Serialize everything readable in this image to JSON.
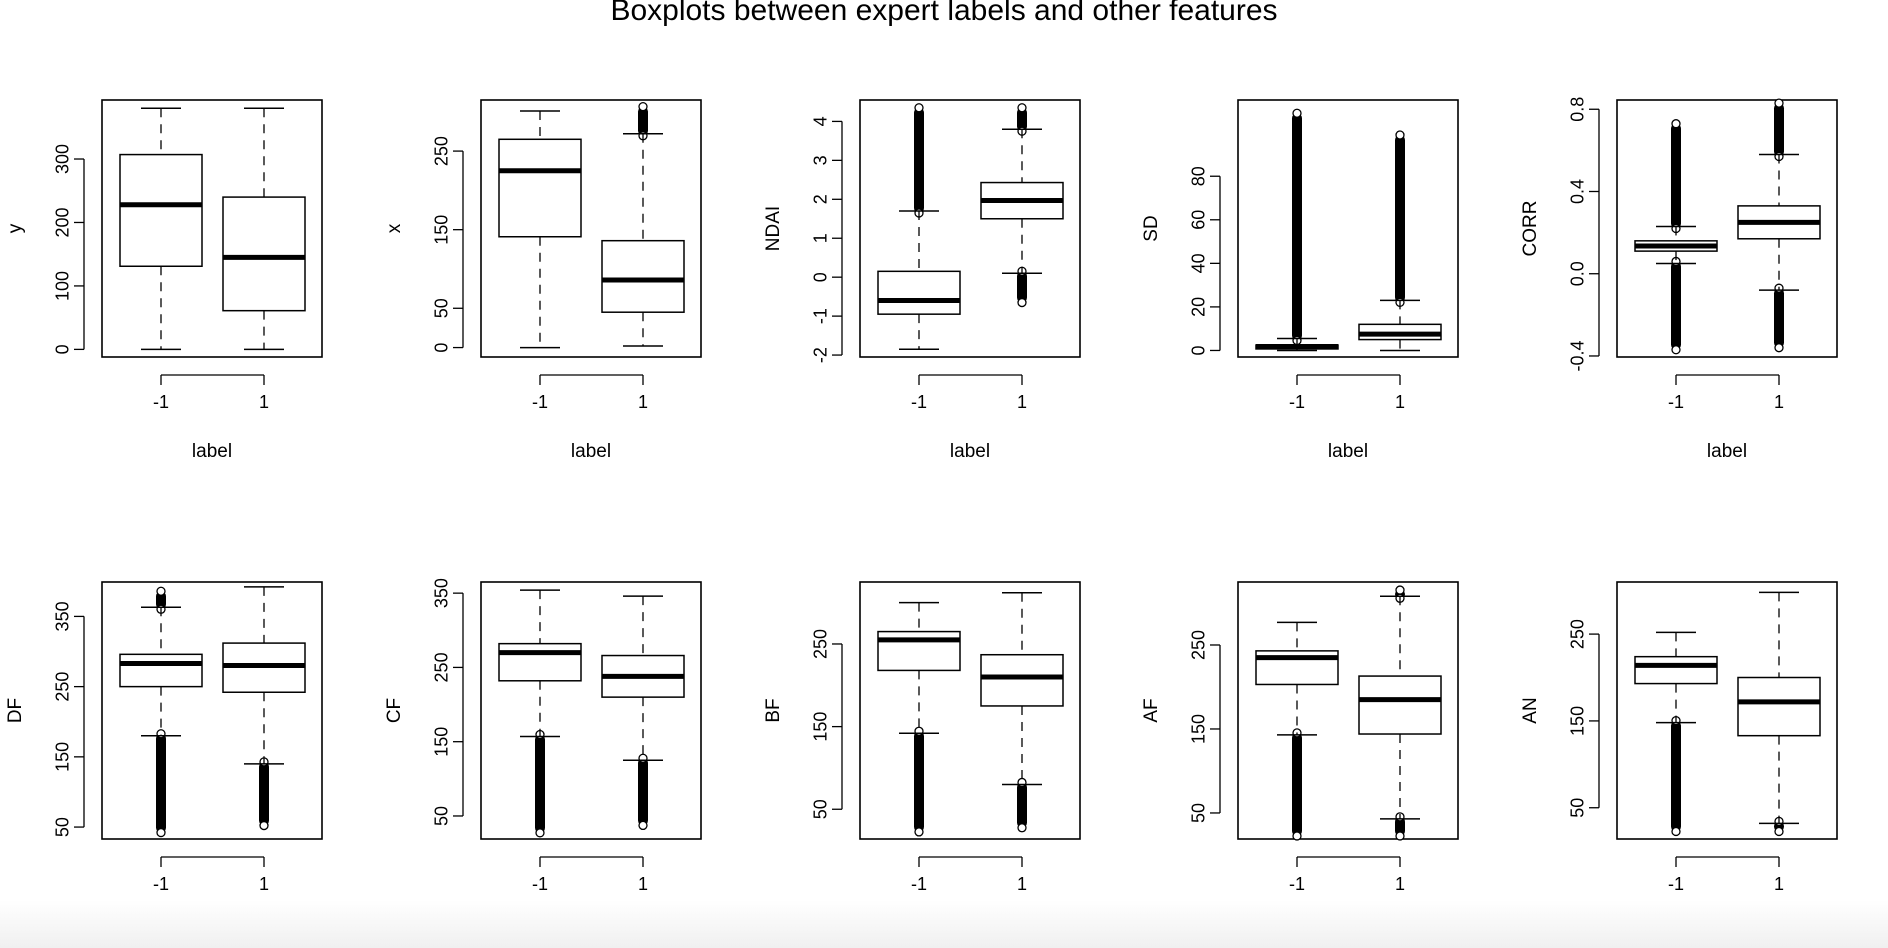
{
  "chart_data": {
    "type": "boxplot",
    "title": "Boxplots between expert labels and other features",
    "categories": [
      "-1",
      "1"
    ],
    "xlabel": "label",
    "panels": [
      {
        "ylabel": "y",
        "yticks": [
          0,
          100,
          200,
          300
        ],
        "tick_labels": [
          "0",
          "100",
          "200",
          "300"
        ],
        "ylim": [
          -12,
          393
        ],
        "boxes": [
          {
            "lo": 0,
            "q1": 131,
            "med": 228,
            "q3": 307,
            "hi": 380,
            "outliers": []
          },
          {
            "lo": 0,
            "q1": 61,
            "med": 145,
            "q3": 240,
            "hi": 380,
            "outliers": []
          }
        ]
      },
      {
        "ylabel": "x",
        "yticks": [
          0,
          50,
          150,
          250
        ],
        "tick_labels": [
          "0",
          "50",
          "150",
          "250"
        ],
        "ylim": [
          -12,
          315
        ],
        "boxes": [
          {
            "lo": 0,
            "q1": 141,
            "med": 225,
            "q3": 265,
            "hi": 301,
            "outliers": []
          },
          {
            "lo": 2,
            "q1": 45,
            "med": 86,
            "q3": 136,
            "hi": 272,
            "outliers": [
              [
                272,
                304
              ]
            ]
          }
        ]
      },
      {
        "ylabel": "NDAI",
        "yticks": [
          -2,
          -1,
          0,
          1,
          2,
          3,
          4
        ],
        "tick_labels": [
          "-2",
          "-1",
          "0",
          "1",
          "2",
          "3",
          "4"
        ],
        "ylim": [
          -2.05,
          4.55
        ],
        "boxes": [
          {
            "lo": -1.85,
            "q1": -0.95,
            "med": -0.6,
            "q3": 0.15,
            "hi": 1.7,
            "outliers": [
              [
                1.7,
                4.3
              ]
            ]
          },
          {
            "lo": 0.1,
            "q1": 1.5,
            "med": 1.97,
            "q3": 2.43,
            "hi": 3.8,
            "outliers": [
              [
                3.8,
                4.3
              ],
              [
                -0.6,
                0.1
              ]
            ]
          }
        ]
      },
      {
        "ylabel": "SD",
        "yticks": [
          0,
          20,
          40,
          60,
          80
        ],
        "tick_labels": [
          "0",
          "20",
          "40",
          "60",
          "80"
        ],
        "ylim": [
          -3,
          115
        ],
        "boxes": [
          {
            "lo": 0,
            "q1": 0.7,
            "med": 1.8,
            "q3": 2.5,
            "hi": 5.5,
            "outliers": [
              [
                5.5,
                108
              ]
            ]
          },
          {
            "lo": 0,
            "q1": 5,
            "med": 7.5,
            "q3": 12,
            "hi": 23,
            "outliers": [
              [
                23,
                98
              ]
            ]
          }
        ]
      },
      {
        "ylabel": "CORR",
        "yticks": [
          -0.4,
          0.0,
          0.4,
          0.8
        ],
        "tick_labels": [
          "-0.4",
          "0.0",
          "0.4",
          "0.8"
        ],
        "ylim": [
          -0.405,
          0.845
        ],
        "boxes": [
          {
            "lo": 0.05,
            "q1": 0.11,
            "med": 0.135,
            "q3": 0.16,
            "hi": 0.23,
            "outliers": [
              [
                0.23,
                0.72
              ],
              [
                -0.36,
                0.05
              ]
            ]
          },
          {
            "lo": -0.08,
            "q1": 0.17,
            "med": 0.25,
            "q3": 0.33,
            "hi": 0.58,
            "outliers": [
              [
                0.58,
                0.82
              ],
              [
                -0.35,
                -0.08
              ]
            ]
          }
        ]
      },
      {
        "ylabel": "DF",
        "yticks": [
          50,
          150,
          250,
          350
        ],
        "tick_labels": [
          "50",
          "150",
          "250",
          "350"
        ],
        "ylim": [
          33,
          399
        ],
        "boxes": [
          {
            "lo": 180,
            "q1": 250,
            "med": 283,
            "q3": 296,
            "hi": 363,
            "outliers": [
              [
                363,
                383
              ],
              [
                45,
                180
              ]
            ]
          },
          {
            "lo": 140,
            "q1": 242,
            "med": 280,
            "q3": 312,
            "hi": 392,
            "outliers": [
              [
                55,
                140
              ]
            ]
          }
        ]
      },
      {
        "ylabel": "CF",
        "yticks": [
          50,
          150,
          250,
          350
        ],
        "tick_labels": [
          "50",
          "150",
          "250",
          "350"
        ],
        "ylim": [
          19,
          365
        ],
        "boxes": [
          {
            "lo": 157,
            "q1": 232,
            "med": 270,
            "q3": 282,
            "hi": 354,
            "outliers": [
              [
                30,
                157
              ]
            ]
          },
          {
            "lo": 125,
            "q1": 210,
            "med": 238,
            "q3": 266,
            "hi": 346,
            "outliers": [
              [
                40,
                125
              ]
            ]
          }
        ]
      },
      {
        "ylabel": "BF",
        "yticks": [
          50,
          150,
          250
        ],
        "tick_labels": [
          "50",
          "150",
          "250"
        ],
        "ylim": [
          14,
          325
        ],
        "boxes": [
          {
            "lo": 142,
            "q1": 218,
            "med": 255,
            "q3": 265,
            "hi": 300,
            "outliers": [
              [
                25,
                142
              ]
            ]
          },
          {
            "lo": 80,
            "q1": 175,
            "med": 210,
            "q3": 237,
            "hi": 312,
            "outliers": [
              [
                30,
                80
              ]
            ]
          }
        ]
      },
      {
        "ylabel": "AF",
        "yticks": [
          50,
          150,
          250
        ],
        "tick_labels": [
          "50",
          "150",
          "250"
        ],
        "ylim": [
          19,
          325
        ],
        "boxes": [
          {
            "lo": 143,
            "q1": 203,
            "med": 235,
            "q3": 243,
            "hi": 277,
            "outliers": [
              [
                25,
                143
              ]
            ]
          },
          {
            "lo": 43,
            "q1": 144,
            "med": 185,
            "q3": 213,
            "hi": 308,
            "outliers": [
              [
                308,
                313
              ],
              [
                25,
                43
              ]
            ]
          }
        ]
      },
      {
        "ylabel": "AN",
        "yticks": [
          50,
          150,
          250
        ],
        "tick_labels": [
          "50",
          "150",
          "250"
        ],
        "ylim": [
          14,
          310
        ],
        "boxes": [
          {
            "lo": 148,
            "q1": 193,
            "med": 214,
            "q3": 224,
            "hi": 252,
            "outliers": [
              [
                25,
                148
              ]
            ]
          },
          {
            "lo": 32,
            "q1": 133,
            "med": 172,
            "q3": 200,
            "hi": 298,
            "outliers": [
              [
                25,
                32
              ]
            ]
          }
        ]
      }
    ]
  }
}
